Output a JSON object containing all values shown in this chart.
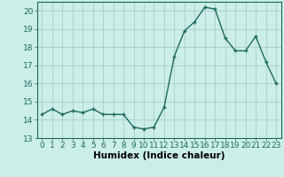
{
  "x": [
    0,
    1,
    2,
    3,
    4,
    5,
    6,
    7,
    8,
    9,
    10,
    11,
    12,
    13,
    14,
    15,
    16,
    17,
    18,
    19,
    20,
    21,
    22,
    23
  ],
  "y": [
    14.3,
    14.6,
    14.3,
    14.5,
    14.4,
    14.6,
    14.3,
    14.3,
    14.3,
    13.6,
    13.5,
    13.6,
    14.7,
    17.5,
    18.9,
    19.4,
    20.2,
    20.1,
    18.5,
    17.8,
    17.8,
    18.6,
    17.2,
    16.0
  ],
  "line_color": "#1a6b5a",
  "marker_color": "#1a6b5a",
  "bg_color": "#cceee8",
  "grid_color": "#aaccc8",
  "xlabel": "Humidex (Indice chaleur)",
  "ylim": [
    13,
    20.5
  ],
  "xlim": [
    -0.5,
    23.5
  ],
  "yticks": [
    13,
    14,
    15,
    16,
    17,
    18,
    19,
    20
  ],
  "xticks": [
    0,
    1,
    2,
    3,
    4,
    5,
    6,
    7,
    8,
    9,
    10,
    11,
    12,
    13,
    14,
    15,
    16,
    17,
    18,
    19,
    20,
    21,
    22,
    23
  ],
  "tick_fontsize": 6.5,
  "xlabel_fontsize": 7.5,
  "marker_size": 2.5,
  "line_width": 1.0
}
